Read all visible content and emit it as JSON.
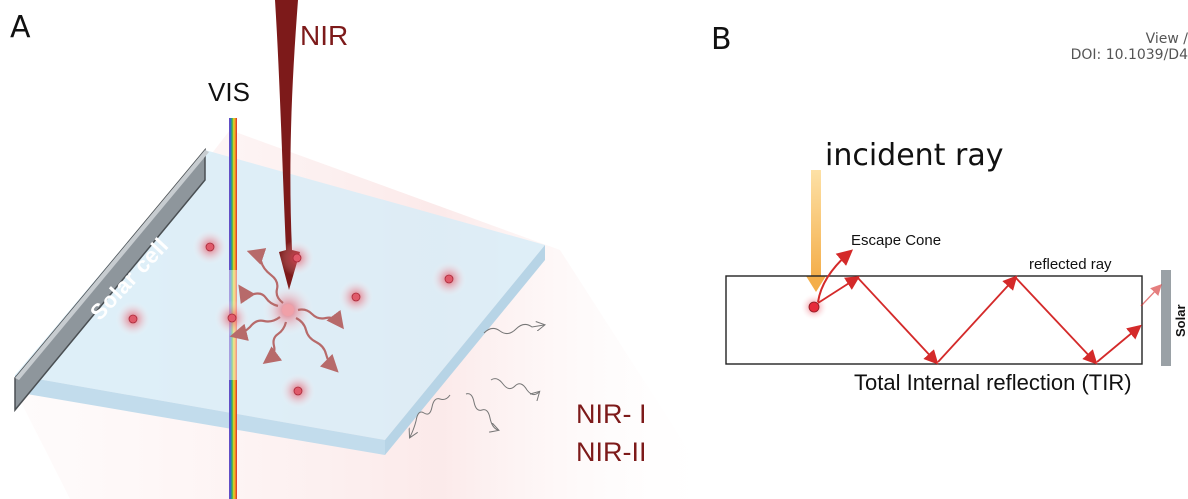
{
  "panel_a": {
    "letter": "A",
    "nir_label": "NIR",
    "vis_label": "VIS",
    "solar_cell_label": "Solar cell",
    "emission_line1": "NIR- I",
    "emission_line2": "NIR-II"
  },
  "panel_b": {
    "letter": "B",
    "header_line1": "View /",
    "header_line2": "DOI: 10.1039/D4",
    "incident_label": "incident ray",
    "escape_label": "Escape Cone",
    "reflected_label": "reflected ray",
    "tir_label": "Total Internal reflection (TIR)",
    "solar_cell_label": "Solar cell"
  },
  "colors": {
    "nir_red": "#7d1a1a",
    "ray_red": "#d42a2a",
    "incident_orange": "#f7c46a",
    "slab_blue": "#d6ecf8",
    "solar_gray": "#8e969c"
  }
}
